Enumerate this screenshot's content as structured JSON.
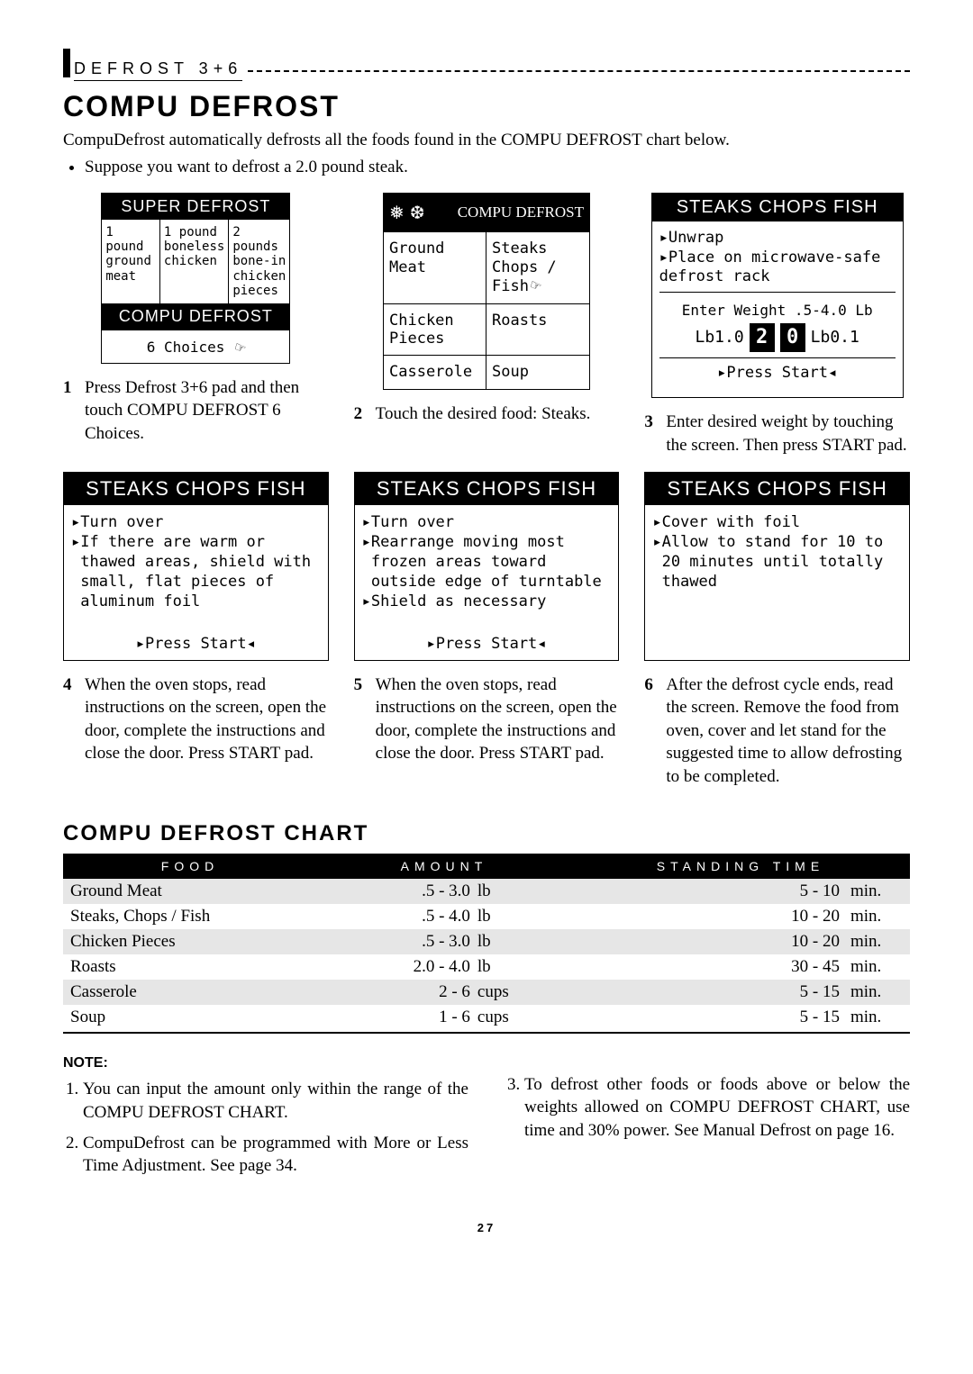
{
  "header": {
    "text": "DEFROST 3+6"
  },
  "title": "COMPU DEFROST",
  "intro_line": "CompuDefrost automatically defrosts all the foods found in the COMPU DEFROST chart below.",
  "intro_bullet": "Suppose you want to defrost a 2.0 pound steak.",
  "super_defrost": {
    "title": "SUPER DEFROST",
    "cells": [
      "1 pound ground meat",
      "1 pound boneless chicken",
      "2 pounds bone-in chicken pieces"
    ],
    "compu_label": "COMPU DEFROST",
    "choices": "6 Choices"
  },
  "compu_menu": {
    "title": "COMPU DEFROST",
    "rows": [
      [
        "Ground Meat",
        "Steaks Chops / Fish"
      ],
      [
        "Chicken Pieces",
        "Roasts"
      ],
      [
        "Casserole",
        "Soup"
      ]
    ]
  },
  "weight_screen": {
    "title": "STEAKS CHOPS FISH",
    "body_lines": [
      "▸Unwrap",
      "▸Place on microwave-safe",
      " defrost rack"
    ],
    "enter_label": "Enter Weight .5-4.0 Lb",
    "lb_left": "Lb1.0",
    "digit1": "2",
    "digit2": "0",
    "lb_right": "Lb0.1",
    "press": "▸Press Start◂"
  },
  "step_captions": [
    "Press Defrost 3+6 pad and then touch COMPU DEFROST 6 Choices.",
    "Touch the desired food: Steaks.",
    "Enter desired weight by touching the screen. Then press START pad.",
    "When the oven stops, read instructions on the screen, open the door, complete the instructions and close the door. Press START pad.",
    "When the oven stops, read instructions on the screen, open the door, complete the instructions and close the door. Press START pad.",
    "After the defrost cycle ends, read the screen. Remove the food from oven, cover and let stand for the suggested time to allow defrosting to be completed."
  ],
  "screens2": {
    "left": {
      "title": "STEAKS CHOPS FISH",
      "body": "▸Turn over\n▸If there are warm or\n thawed areas, shield with\n small, flat pieces of\n aluminum foil",
      "foot": "▸Press Start◂"
    },
    "mid": {
      "title": "STEAKS CHOPS FISH",
      "body": "▸Turn over\n▸Rearrange moving most\n frozen areas toward\n outside edge of turntable\n▸Shield as necessary",
      "foot": "▸Press Start◂"
    },
    "right": {
      "title": "STEAKS CHOPS FISH",
      "body": "▸Cover with foil\n▸Allow to stand for 10 to\n 20 minutes until totally\n thawed",
      "foot": ""
    }
  },
  "chart": {
    "title": "COMPU DEFROST CHART",
    "headers": [
      "FOOD",
      "AMOUNT",
      "STANDING TIME"
    ],
    "rows": [
      {
        "food": "Ground Meat",
        "amount": ".5 - 3.0",
        "unit": "lb",
        "stand": "5 - 10",
        "stand_unit": "min."
      },
      {
        "food": "Steaks, Chops / Fish",
        "amount": ".5 - 4.0",
        "unit": "lb",
        "stand": "10 - 20",
        "stand_unit": "min."
      },
      {
        "food": "Chicken Pieces",
        "amount": ".5 - 3.0",
        "unit": "lb",
        "stand": "10 - 20",
        "stand_unit": "min."
      },
      {
        "food": "Roasts",
        "amount": "2.0 - 4.0",
        "unit": "lb",
        "stand": "30 - 45",
        "stand_unit": "min."
      },
      {
        "food": "Casserole",
        "amount": "2 - 6",
        "unit": "cups",
        "stand": "5 - 15",
        "stand_unit": "min."
      },
      {
        "food": "Soup",
        "amount": "1 - 6",
        "unit": "cups",
        "stand": "5 - 15",
        "stand_unit": "min."
      }
    ]
  },
  "notes": {
    "title": "NOTE:",
    "left": [
      "You can input the amount only within the range of the COMPU DEFROST CHART.",
      "CompuDefrost can be programmed with More or Less Time Adjustment. See page 34."
    ],
    "right": [
      "To defrost other foods or foods above or below the weights allowed on COMPU DEFROST CHART, use time and 30% power. See Manual Defrost on page 16."
    ]
  },
  "page_number": "27"
}
